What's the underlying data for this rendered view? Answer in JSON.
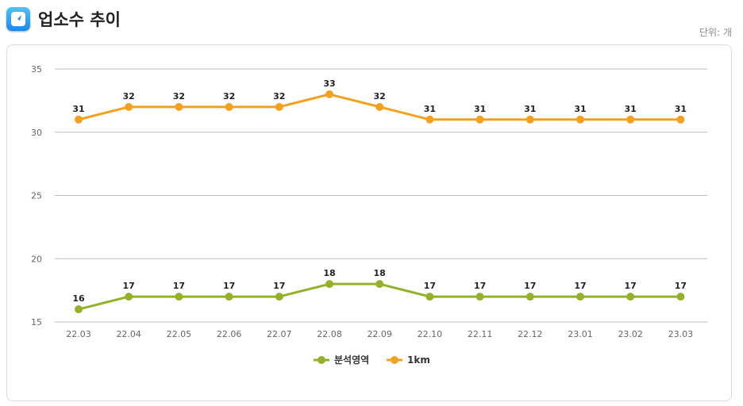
{
  "header": {
    "title": "업소수 추이",
    "icon": "app-logo-icon"
  },
  "unit_label": "단위: 개",
  "colors": {
    "series_1": "#93b12a",
    "series_2": "#f5a01f",
    "grid": "#bdbdbd"
  },
  "chart_data": {
    "type": "line",
    "title": "",
    "xlabel": "",
    "ylabel": "",
    "x": [
      "22.03",
      "22.04",
      "22.05",
      "22.06",
      "22.07",
      "22.08",
      "22.09",
      "22.10",
      "22.11",
      "22.12",
      "23.01",
      "23.02",
      "23.03"
    ],
    "ylim": [
      15,
      35
    ],
    "yticks": [
      15,
      20,
      25,
      30,
      35
    ],
    "grid": true,
    "legend_position": "bottom-center",
    "series": [
      {
        "name": "분석영역",
        "values": [
          16,
          17,
          17,
          17,
          17,
          18,
          18,
          17,
          17,
          17,
          17,
          17,
          17
        ]
      },
      {
        "name": "1km",
        "values": [
          31,
          32,
          32,
          32,
          32,
          33,
          32,
          31,
          31,
          31,
          31,
          31,
          31
        ]
      }
    ]
  }
}
